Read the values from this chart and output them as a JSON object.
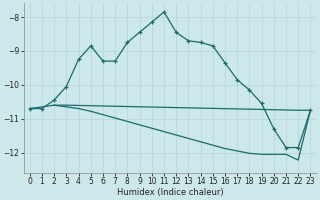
{
  "xlabel": "Humidex (Indice chaleur)",
  "background_color": "#cce8ea",
  "grid_color": "#b8d8da",
  "line_color": "#1a6b6b",
  "xlim": [
    -0.5,
    23.5
  ],
  "ylim": [
    -12.6,
    -7.6
  ],
  "yticks": [
    -12,
    -11,
    -10,
    -9,
    -8
  ],
  "xticks": [
    0,
    1,
    2,
    3,
    4,
    5,
    6,
    7,
    8,
    9,
    10,
    11,
    12,
    13,
    14,
    15,
    16,
    17,
    18,
    19,
    20,
    21,
    22,
    23
  ],
  "series": [
    {
      "x": [
        0,
        1,
        2,
        3,
        4,
        5,
        6,
        7,
        8,
        9,
        10,
        11,
        12,
        13,
        14,
        15,
        16,
        17,
        18,
        19,
        20,
        21,
        22,
        23
      ],
      "y": [
        -10.7,
        -10.7,
        -10.45,
        -10.05,
        -9.25,
        -8.85,
        -9.3,
        -9.3,
        -8.75,
        -8.45,
        -8.15,
        -7.85,
        -8.45,
        -8.7,
        -8.75,
        -8.85,
        -9.35,
        -9.85,
        -10.15,
        -10.55,
        -11.3,
        -11.85,
        -11.85,
        -10.75
      ],
      "marker": true
    },
    {
      "x": [
        0,
        2,
        3,
        22,
        23
      ],
      "y": [
        -10.7,
        -10.6,
        -10.6,
        -10.75,
        -10.75
      ],
      "marker": false
    },
    {
      "x": [
        2,
        3,
        4,
        5,
        6,
        7,
        8,
        9,
        10,
        11,
        12,
        13,
        14,
        15,
        16,
        17,
        18,
        19,
        20,
        21,
        22,
        23
      ],
      "y": [
        -10.6,
        -10.65,
        -10.7,
        -10.78,
        -10.88,
        -10.98,
        -11.08,
        -11.18,
        -11.28,
        -11.38,
        -11.48,
        -11.58,
        -11.68,
        -11.78,
        -11.88,
        -11.95,
        -12.02,
        -12.05,
        -12.05,
        -12.05,
        -12.22,
        -10.75
      ],
      "marker": false
    }
  ]
}
